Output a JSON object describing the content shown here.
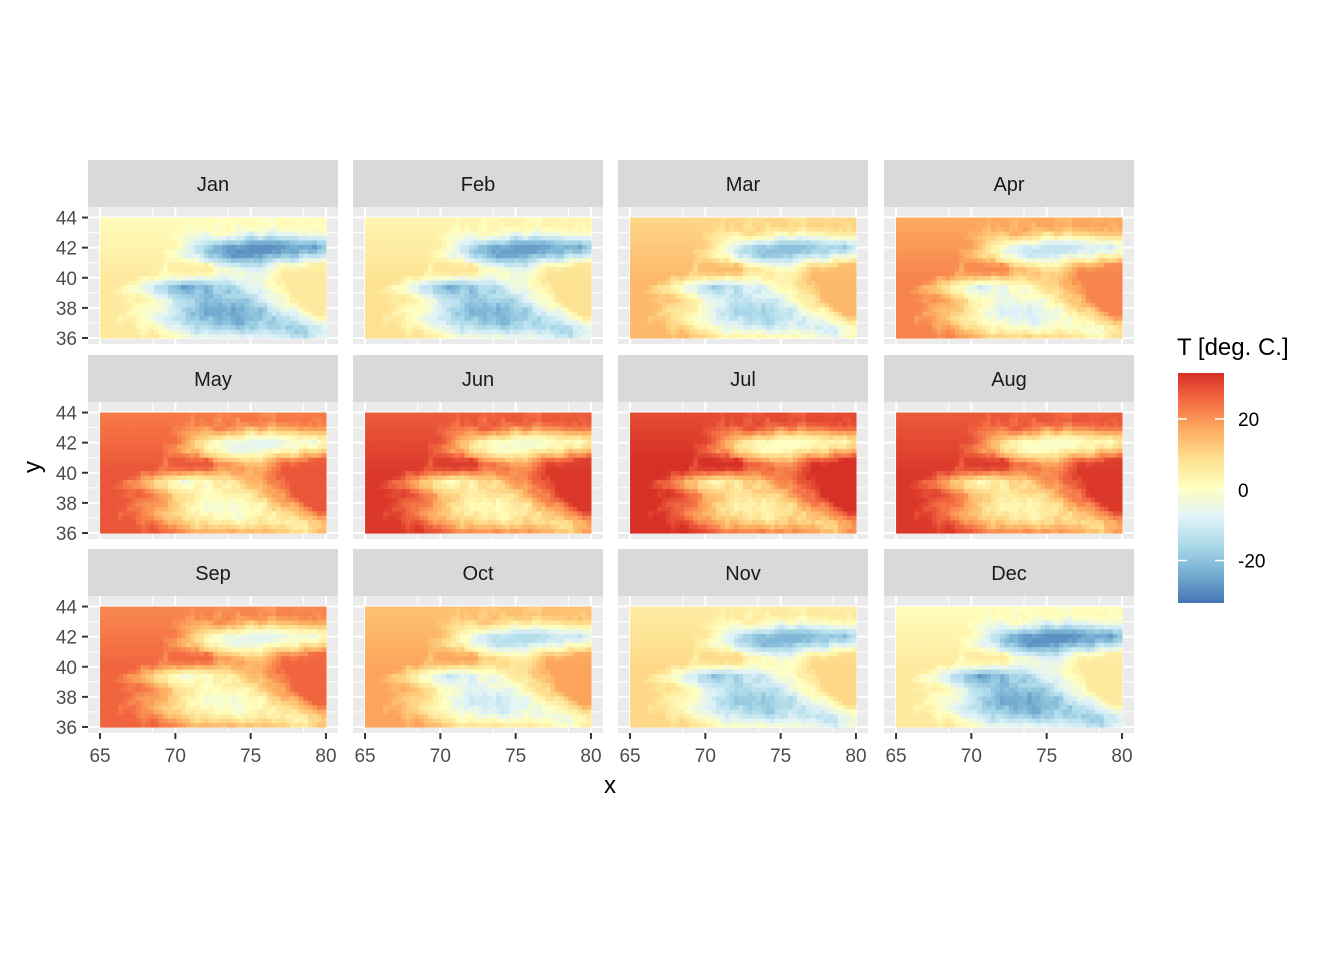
{
  "chart_data": {
    "type": "heatmap",
    "panels": [
      "Jan",
      "Feb",
      "Mar",
      "Apr",
      "May",
      "Jun",
      "Jul",
      "Aug",
      "Sep",
      "Oct",
      "Nov",
      "Dec"
    ],
    "xlabel": "x",
    "ylabel": "y",
    "xlim": [
      64.2,
      80.8
    ],
    "ylim": [
      35.6,
      44.7
    ],
    "x_ticks": [
      65,
      70,
      75,
      80
    ],
    "x_tick_labels": [
      "65",
      "70",
      "75",
      "80"
    ],
    "y_ticks": [
      36,
      38,
      40,
      42,
      44
    ],
    "y_tick_labels": [
      "36",
      "38",
      "40",
      "42",
      "44"
    ],
    "raster_extent": {
      "x": [
        65,
        80
      ],
      "y": [
        36,
        44
      ]
    },
    "monthly_temperature_range": [
      {
        "month": "Jan",
        "min": -28,
        "max": 6
      },
      {
        "month": "Feb",
        "min": -26,
        "max": 8
      },
      {
        "month": "Mar",
        "min": -20,
        "max": 15
      },
      {
        "month": "Apr",
        "min": -12,
        "max": 22
      },
      {
        "month": "May",
        "min": -6,
        "max": 28
      },
      {
        "month": "Jun",
        "min": -2,
        "max": 32
      },
      {
        "month": "Jul",
        "min": 0,
        "max": 34
      },
      {
        "month": "Aug",
        "min": -1,
        "max": 32
      },
      {
        "month": "Sep",
        "min": -6,
        "max": 26
      },
      {
        "month": "Oct",
        "min": -14,
        "max": 18
      },
      {
        "month": "Nov",
        "min": -22,
        "max": 10
      },
      {
        "month": "Dec",
        "min": -28,
        "max": 6
      }
    ],
    "legend": {
      "title": "T [deg. C.]",
      "limits": [
        -32,
        33
      ],
      "breaks": [
        20,
        0,
        -20
      ],
      "break_labels": [
        "20",
        "0",
        "-20"
      ],
      "palette": [
        "#d73027",
        "#f46d43",
        "#fdae61",
        "#fee090",
        "#ffffbf",
        "#e0f3f8",
        "#abd9e9",
        "#74add1",
        "#4575b4"
      ],
      "placement": "right"
    },
    "colors": {
      "panel_background": "#ebebeb",
      "grid": "#ffffff",
      "strip_background": "#d9d9d9"
    }
  }
}
